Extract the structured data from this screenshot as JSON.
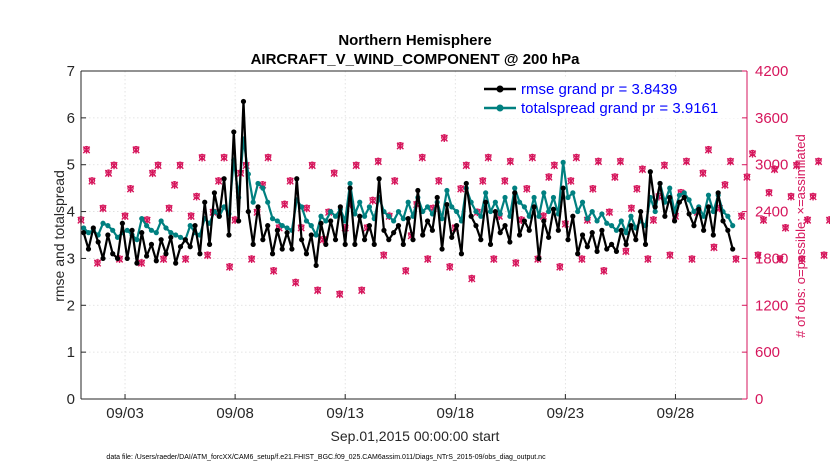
{
  "chart_data": {
    "type": "line",
    "title": "Northern Hemisphere",
    "subtitle": "AIRCRAFT_V_WIND_COMPONENT @ 200 hPa",
    "xlabel": "Sep.01,2015 00:00:00 start",
    "ylabel_left": "rmse and totalspread",
    "ylabel_right": "# of obs: o=possible; ×=assimilated",
    "x_ticks": [
      "09/03",
      "09/08",
      "09/13",
      "09/18",
      "09/23",
      "09/28"
    ],
    "x_tick_days": [
      3,
      8,
      13,
      18,
      23,
      28
    ],
    "xlim_days": [
      1,
      31.25
    ],
    "ylim_left": [
      0,
      7
    ],
    "yticks_left": [
      "0",
      "1",
      "2",
      "3",
      "4",
      "5",
      "6",
      "7"
    ],
    "ylim_right": [
      0,
      4200
    ],
    "yticks_right": [
      "0",
      "600",
      "1200",
      "1800",
      "2400",
      "3000",
      "3600",
      "4200"
    ],
    "series": [
      {
        "name": "rmse grand pr = 3.8439",
        "color": "#000000",
        "marker": "dot",
        "axis": "left",
        "values": [
          3.55,
          3.2,
          3.65,
          3.35,
          3.0,
          3.5,
          3.1,
          3.0,
          3.75,
          3.0,
          3.6,
          2.9,
          3.55,
          3.05,
          3.3,
          2.95,
          3.4,
          3.1,
          3.45,
          2.9,
          3.25,
          3.4,
          3.25,
          3.7,
          3.1,
          4.2,
          3.3,
          4.4,
          3.9,
          4.7,
          3.5,
          5.7,
          3.8,
          6.35,
          4.0,
          3.3,
          4.1,
          3.4,
          3.7,
          3.1,
          3.6,
          3.2,
          3.55,
          3.2,
          4.7,
          3.4,
          3.1,
          3.5,
          2.85,
          3.75,
          3.3,
          3.8,
          3.4,
          4.1,
          3.3,
          4.5,
          3.3,
          3.9,
          3.4,
          3.7,
          3.3,
          4.7,
          3.6,
          3.4,
          3.55,
          3.7,
          3.3,
          3.85,
          3.4,
          4.45,
          3.5,
          3.8,
          3.6,
          4.3,
          3.2,
          4.15,
          3.45,
          3.7,
          3.1,
          4.6,
          3.9,
          3.7,
          3.4,
          4.2,
          3.3,
          4.0,
          3.55,
          3.7,
          3.35,
          4.4,
          3.5,
          3.8,
          3.6,
          4.1,
          3.0,
          3.8,
          3.45,
          4.05,
          3.6,
          4.5,
          3.4,
          3.9,
          3.1,
          3.5,
          3.25,
          3.55,
          3.15,
          3.6,
          3.2,
          3.3,
          3.15,
          3.6,
          3.3,
          3.7,
          3.4,
          4.0,
          3.3,
          4.85,
          4.1,
          4.6,
          3.9,
          4.3,
          3.8,
          4.2,
          4.3,
          3.95,
          3.7,
          4.05,
          3.6,
          4.1,
          3.5,
          4.4,
          3.8,
          3.6,
          3.2
        ]
      },
      {
        "name": "totalspread grand pr = 3.9161",
        "color": "#008080",
        "marker": "dot",
        "axis": "left",
        "values": [
          3.65,
          3.55,
          3.6,
          3.5,
          3.75,
          3.7,
          3.6,
          3.45,
          3.55,
          3.6,
          3.5,
          3.4,
          3.85,
          3.7,
          3.6,
          3.55,
          3.8,
          3.65,
          3.55,
          3.5,
          3.45,
          3.4,
          3.7,
          3.55,
          3.5,
          3.85,
          3.75,
          4.0,
          3.9,
          4.1,
          3.95,
          5.1,
          4.3,
          5.55,
          4.8,
          4.2,
          4.6,
          4.5,
          4.2,
          3.85,
          3.8,
          3.7,
          3.65,
          3.6,
          4.25,
          4.1,
          3.8,
          3.7,
          3.5,
          3.9,
          3.8,
          4.0,
          3.9,
          4.05,
          3.8,
          4.6,
          3.95,
          4.2,
          3.9,
          4.1,
          3.85,
          4.3,
          4.0,
          3.9,
          3.8,
          4.0,
          3.85,
          4.2,
          3.9,
          4.3,
          4.0,
          4.1,
          3.95,
          4.2,
          3.85,
          4.45,
          4.1,
          4.0,
          3.8,
          4.5,
          4.2,
          4.0,
          3.9,
          4.4,
          4.0,
          4.2,
          3.95,
          4.3,
          3.9,
          4.5,
          4.2,
          4.1,
          3.9,
          4.3,
          3.9,
          4.4,
          4.0,
          4.3,
          3.95,
          5.05,
          4.3,
          4.4,
          4.0,
          4.2,
          3.85,
          4.0,
          3.8,
          3.95,
          3.75,
          3.7,
          3.6,
          3.8,
          3.55,
          3.9,
          3.65,
          3.8,
          3.7,
          4.3,
          4.0,
          4.6,
          4.2,
          4.5,
          4.0,
          4.35,
          4.4,
          4.25,
          4.0,
          4.1,
          3.9,
          4.35,
          4.0,
          4.35,
          4.0,
          3.9,
          3.7
        ]
      },
      {
        "name": "possible obs count",
        "color": "#d6165c",
        "marker": "o",
        "axis": "right",
        "values": [
          2300,
          3200,
          2800,
          1750,
          2450,
          2900,
          3000,
          1800,
          2350,
          2700,
          3200,
          1750,
          2300,
          2900,
          3000,
          1800,
          2450,
          2750,
          3000,
          1800,
          2350,
          2600,
          3100,
          1850,
          2400,
          2800,
          3100,
          1700,
          2300,
          2900,
          3000,
          1800,
          2400,
          2750,
          3100,
          1650,
          2200,
          2500,
          2800,
          1500,
          2200,
          2450,
          3000,
          1400,
          2050,
          2400,
          2900,
          1350,
          2200,
          2500,
          3000,
          1400,
          2200,
          2550,
          3050,
          1850,
          2350,
          2800,
          3250,
          1650,
          2100,
          2500,
          3100,
          1800,
          2450,
          2800,
          3350,
          1700,
          2200,
          2700,
          3000,
          1550,
          2400,
          2800,
          3100,
          1800,
          2350,
          2800,
          3050,
          1750,
          2300,
          2700,
          3100,
          1800,
          2350,
          2850,
          3000,
          1700,
          2250,
          2800,
          3100,
          1800,
          2300,
          2700,
          3050,
          1650,
          2400,
          2850,
          3050,
          1900,
          2450,
          2700,
          2950,
          1800,
          2300,
          2600,
          3000,
          1850,
          2350,
          2650,
          3050,
          1800,
          2400,
          2900,
          3200,
          1950,
          2450,
          2750,
          3050,
          1800,
          2350,
          2850,
          3150,
          1850,
          2300,
          2650,
          2950,
          1800,
          2200,
          2600,
          3000,
          1800,
          2300,
          2600,
          3050,
          1850,
          2300,
          2650,
          3000,
          1800
        ]
      },
      {
        "name": "assimilated obs count",
        "color": "#d6165c",
        "marker": "x",
        "axis": "right",
        "values": [
          2290,
          3190,
          2790,
          1740,
          2440,
          2890,
          2990,
          1790,
          2340,
          2690,
          3190,
          1740,
          2290,
          2890,
          2990,
          1790,
          2440,
          2740,
          2990,
          1790,
          2340,
          2590,
          3090,
          1840,
          2390,
          2790,
          3090,
          1690,
          2290,
          2890,
          2990,
          1790,
          2390,
          2740,
          3090,
          1640,
          2190,
          2490,
          2790,
          1490,
          2190,
          2440,
          2990,
          1390,
          2040,
          2390,
          2890,
          1340,
          2190,
          2490,
          2990,
          1390,
          2190,
          2540,
          3040,
          1840,
          2340,
          2790,
          3240,
          1640,
          2090,
          2490,
          3090,
          1790,
          2440,
          2790,
          3340,
          1690,
          2190,
          2690,
          2990,
          1540,
          2390,
          2790,
          3090,
          1790,
          2340,
          2790,
          3040,
          1740,
          2290,
          2690,
          3090,
          1790,
          2340,
          2840,
          2990,
          1690,
          2240,
          2790,
          3090,
          1790,
          2290,
          2690,
          3040,
          1640,
          2390,
          2840,
          3040,
          1890,
          2440,
          2690,
          2940,
          1790,
          2290,
          2590,
          2990,
          1840,
          2340,
          2640,
          3040,
          1790,
          2390,
          2890,
          3190,
          1940,
          2440,
          2740,
          3040,
          1790,
          2340,
          2840,
          3140,
          1840,
          2290,
          2640,
          2940,
          1790,
          2190,
          2590,
          2990,
          1790,
          2290,
          2590,
          3040,
          1840,
          2290,
          2640,
          2990,
          1790
        ]
      }
    ],
    "legend": [
      "rmse grand pr = 3.8439",
      "totalspread grand pr = 3.9161"
    ],
    "legend_position": "top-right",
    "colors": {
      "rmse": "#000000",
      "spread": "#008080",
      "obs": "#d6165c",
      "legend_text": "#0000ff"
    }
  },
  "footer": "data file: /Users/raeder/DAI/ATM_forcXX/CAM6_setup/f.e21.FHIST_BGC.f09_025.CAM6assim.011/Diags_NTrS_2015-09/obs_diag_output.nc"
}
